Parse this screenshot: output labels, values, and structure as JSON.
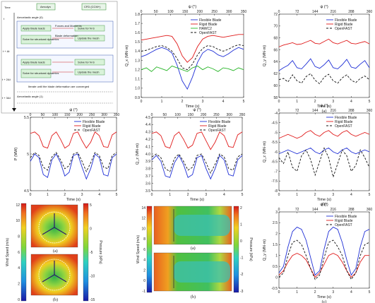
{
  "flowchart": {
    "col_time": "Time",
    "col_aerodyn": "Aerodyn",
    "col_cfd": "CFD (CCM+)",
    "step_aero": "Aeroelastic angle (0)",
    "block_fe": "FEA",
    "apply_loads": "Apply blade loads",
    "solve_struct": "Solve for structural dynamics",
    "block_cfd": "CFD",
    "solve_navier": "Solve for N-S",
    "update_mesh": "Update the mesh",
    "send_loads": "Forces and Moments",
    "send_def": "Blade deformation",
    "iterate": "Iterate until the blade deformation are converged",
    "step_next": "Aeroelastic angle (1)",
    "t0": "t",
    "t1": "t + Δt",
    "t2": "t + 2Δt",
    "t3": "t + 3Δt"
  },
  "contours": {
    "left_cbar_label": "Wind Speed (m/s)",
    "right_cbar_label": "Pressure (kPa)",
    "left_top_caption": "(a)",
    "left_bottom_caption": "(b)",
    "mid_top_caption": "(a)",
    "mid_bottom_caption": "(b)",
    "left_ws_ticks": [
      "12",
      "10",
      "8",
      "6",
      "4",
      "2",
      "0"
    ],
    "left_p_ticks": [
      "5",
      "0",
      "-5",
      "-10",
      "-15"
    ],
    "mid_ws_ticks": [
      "14",
      "12",
      "10",
      "8",
      "6",
      "4",
      "2",
      "0",
      "-1"
    ],
    "mid_p_ticks": [
      "2",
      "1",
      "0",
      "-1",
      "-2",
      "-3"
    ]
  },
  "chart_data": [
    {
      "type": "line",
      "top_axis_label": "ψ (°)",
      "xlabel": "Time (s)",
      "ylabel": "Q_x (MN·m)",
      "xlim": [
        0,
        5
      ],
      "ylim": [
        0.9,
        1.8
      ],
      "x_ticks": [
        "0",
        "1",
        "2",
        "3",
        "4",
        "5"
      ],
      "y_ticks": [
        "1.8",
        "1.7",
        "1.6",
        "1.5",
        "1.4",
        "1.3",
        "1.2",
        "1.1",
        "1.0",
        "0.9"
      ],
      "top_ticks": [
        "0",
        "50",
        "100",
        "150",
        "200",
        "250",
        "300",
        "350"
      ],
      "x": [
        0,
        0.25,
        0.5,
        0.75,
        1,
        1.25,
        1.5,
        1.75,
        2,
        2.25,
        2.5,
        2.75,
        3,
        3.25,
        3.5,
        3.75,
        4,
        4.25,
        4.5,
        4.75,
        5
      ],
      "series": [
        {
          "name": "Flexible Blade",
          "color": "#1f2fd6",
          "dash": "",
          "values": [
            1.34,
            1.36,
            1.39,
            1.42,
            1.44,
            1.42,
            1.38,
            1.25,
            1.08,
            0.99,
            1.12,
            1.28,
            1.38,
            1.42,
            1.4,
            1.36,
            1.34,
            1.37,
            1.41,
            1.44,
            1.42
          ]
        },
        {
          "name": "Rigid Blade",
          "color": "#e01a1a",
          "dash": "",
          "values": [
            1.52,
            1.53,
            1.54,
            1.55,
            1.56,
            1.57,
            1.56,
            1.48,
            1.35,
            1.28,
            1.33,
            1.45,
            1.53,
            1.56,
            1.57,
            1.56,
            1.55,
            1.56,
            1.57,
            1.58,
            1.58
          ]
        },
        {
          "name": "HAWC2",
          "color": "#27b527",
          "dash": "",
          "values": [
            1.2,
            1.22,
            1.18,
            1.23,
            1.21,
            1.19,
            1.24,
            1.22,
            1.2,
            1.18,
            1.22,
            1.24,
            1.2,
            1.23,
            1.21,
            1.18,
            1.22,
            1.21,
            1.19,
            1.22,
            1.2
          ]
        },
        {
          "name": "OpenFAST",
          "color": "#111111",
          "dash": "3,2",
          "values": [
            1.4,
            1.41,
            1.43,
            1.45,
            1.46,
            1.44,
            1.4,
            1.32,
            1.22,
            1.2,
            1.26,
            1.36,
            1.43,
            1.46,
            1.45,
            1.42,
            1.4,
            1.42,
            1.45,
            1.47,
            1.46
          ]
        }
      ]
    },
    {
      "type": "line",
      "top_axis_label": "ψ (°)",
      "xlabel": "Time (s)",
      "ylabel": "Q_y (MN·m)",
      "caption": "(a)",
      "xlim": [
        0,
        5
      ],
      "ylim": [
        58,
        72
      ],
      "x_ticks": [
        "0",
        "1",
        "2",
        "3",
        "4",
        "5"
      ],
      "y_ticks": [
        "72",
        "70",
        "68",
        "66",
        "64",
        "62",
        "60",
        "58"
      ],
      "top_ticks": [
        "0",
        "72",
        "144",
        "216",
        "288",
        "360"
      ],
      "x": [
        0,
        0.25,
        0.5,
        0.75,
        1,
        1.25,
        1.5,
        1.75,
        2,
        2.25,
        2.5,
        2.75,
        3,
        3.25,
        3.5,
        3.75,
        4,
        4.25,
        4.5,
        4.75,
        5
      ],
      "series": [
        {
          "name": "Flexible Blade",
          "color": "#1f2fd6",
          "dash": "",
          "values": [
            62.5,
            63.0,
            63.4,
            64.2,
            63.0,
            62.8,
            63.6,
            64.5,
            63.2,
            62.9,
            63.5,
            64.3,
            63.0,
            62.8,
            63.5,
            64.4,
            63.1,
            62.9,
            63.6,
            64.2,
            63.0
          ]
        },
        {
          "name": "Rigid Blade",
          "color": "#e01a1a",
          "dash": "",
          "values": [
            66.5,
            66.8,
            67.0,
            67.2,
            66.9,
            67.0,
            67.3,
            67.6,
            67.1,
            67.0,
            67.4,
            67.8,
            67.2,
            67.0,
            67.3,
            67.6,
            67.1,
            67.0,
            67.2,
            67.4,
            67.0
          ]
        },
        {
          "name": "OpenFAST",
          "color": "#111111",
          "dash": "3,2",
          "values": [
            61.0,
            61.2,
            60.6,
            61.8,
            60.8,
            60.4,
            61.5,
            62.0,
            60.9,
            60.3,
            61.4,
            61.9,
            60.8,
            60.4,
            61.3,
            61.8,
            60.9,
            60.5,
            61.2,
            61.6,
            61.0
          ]
        }
      ]
    },
    {
      "type": "line",
      "top_axis_label": "ψ (°)",
      "xlabel": "Time (s)",
      "ylabel": "P (MW)",
      "xlim": [
        0,
        5
      ],
      "ylim": [
        4.5,
        5.5
      ],
      "x_ticks": [
        "0",
        "1",
        "2",
        "3",
        "4",
        "5"
      ],
      "y_ticks": [
        "5.5",
        "5",
        "4.5"
      ],
      "top_ticks": [
        "0",
        "50",
        "100",
        "150",
        "200",
        "250",
        "300",
        "350"
      ],
      "x": [
        0,
        0.25,
        0.5,
        0.75,
        1,
        1.25,
        1.5,
        1.75,
        2,
        2.25,
        2.5,
        2.75,
        3,
        3.25,
        3.5,
        3.75,
        4,
        4.25,
        4.5,
        4.75,
        5
      ],
      "series": [
        {
          "name": "Flexible Blade",
          "color": "#1f2fd6",
          "dash": "",
          "values": [
            4.9,
            5.0,
            4.95,
            4.72,
            4.68,
            4.92,
            5.0,
            4.88,
            4.7,
            4.75,
            4.98,
            5.0,
            4.82,
            4.66,
            4.8,
            5.0,
            4.95,
            4.72,
            4.7,
            4.95,
            5.0
          ]
        },
        {
          "name": "Rigid Blade",
          "color": "#e01a1a",
          "dash": "",
          "values": [
            5.28,
            5.3,
            5.25,
            5.1,
            5.08,
            5.25,
            5.3,
            5.2,
            5.08,
            5.12,
            5.28,
            5.3,
            5.18,
            5.08,
            5.16,
            5.3,
            5.25,
            5.1,
            5.09,
            5.26,
            5.3
          ]
        },
        {
          "name": "OpenFAST",
          "color": "#111111",
          "dash": "3,2",
          "values": [
            4.95,
            5.02,
            4.98,
            4.82,
            4.78,
            4.96,
            5.02,
            4.92,
            4.8,
            4.84,
            5.0,
            5.02,
            4.9,
            4.76,
            4.88,
            5.02,
            4.98,
            4.82,
            4.8,
            4.98,
            5.02
          ]
        }
      ]
    },
    {
      "type": "line",
      "top_axis_label": "ψ (°)",
      "xlabel": "Time (s)",
      "ylabel": "Q_z (MN·m)",
      "xlim": [
        0,
        5
      ],
      "ylim": [
        3.5,
        4.5
      ],
      "x_ticks": [
        "0",
        "1",
        "2",
        "3",
        "4",
        "5"
      ],
      "y_ticks": [
        "4.5",
        "4.4",
        "4.3",
        "4.2",
        "4.1",
        "4.0",
        "3.9",
        "3.8",
        "3.7",
        "3.6",
        "3.5"
      ],
      "top_ticks": [
        "0",
        "50",
        "100",
        "150",
        "200",
        "250",
        "300",
        "350"
      ],
      "x": [
        0,
        0.25,
        0.5,
        0.75,
        1,
        1.25,
        1.5,
        1.75,
        2,
        2.25,
        2.5,
        2.75,
        3,
        3.25,
        3.5,
        3.75,
        4,
        4.25,
        4.5,
        4.75,
        5
      ],
      "series": [
        {
          "name": "Flexible Blade",
          "color": "#1f2fd6",
          "dash": "",
          "values": [
            3.92,
            3.98,
            3.9,
            3.7,
            3.68,
            3.88,
            3.98,
            3.86,
            3.68,
            3.72,
            3.95,
            3.98,
            3.8,
            3.66,
            3.8,
            3.98,
            3.92,
            3.72,
            3.7,
            3.92,
            3.98
          ]
        },
        {
          "name": "Rigid Blade",
          "color": "#e01a1a",
          "dash": "",
          "values": [
            4.28,
            4.3,
            4.25,
            4.1,
            4.08,
            4.25,
            4.3,
            4.2,
            4.08,
            4.12,
            4.28,
            4.3,
            4.18,
            4.06,
            4.16,
            4.3,
            4.25,
            4.1,
            4.09,
            4.26,
            4.3
          ]
        },
        {
          "name": "OpenFAST",
          "color": "#111111",
          "dash": "3,2",
          "values": [
            3.96,
            4.0,
            3.95,
            3.8,
            3.76,
            3.94,
            4.0,
            3.9,
            3.78,
            3.82,
            3.98,
            4.0,
            3.88,
            3.74,
            3.86,
            4.0,
            3.96,
            3.8,
            3.78,
            3.96,
            4.0
          ]
        }
      ]
    },
    {
      "type": "line",
      "top_axis_label": "ψ (°)",
      "xlabel": "Time (s)",
      "ylabel": "Q_z (MN·m)",
      "caption": "(b)",
      "xlim": [
        0,
        5
      ],
      "ylim": [
        -8,
        -4
      ],
      "x_ticks": [
        "0",
        "1",
        "2",
        "3",
        "4",
        "5"
      ],
      "y_ticks": [
        "-4",
        "-4.5",
        "-5",
        "-5.5",
        "-6",
        "-6.5",
        "-7",
        "-7.5",
        "-8"
      ],
      "top_ticks": [
        "0",
        "72",
        "144",
        "216",
        "288",
        "360"
      ],
      "x": [
        0,
        0.25,
        0.5,
        0.75,
        1,
        1.25,
        1.5,
        1.75,
        2,
        2.25,
        2.5,
        2.75,
        3,
        3.25,
        3.5,
        3.75,
        4,
        4.25,
        4.5,
        4.75,
        5
      ],
      "series": [
        {
          "name": "Flexible Blade",
          "color": "#1f2fd6",
          "dash": "",
          "values": [
            -6.1,
            -6.0,
            -5.9,
            -6.0,
            -6.1,
            -6.0,
            -5.9,
            -5.8,
            -6.0,
            -6.1,
            -5.9,
            -5.8,
            -6.0,
            -6.1,
            -5.9,
            -5.8,
            -6.0,
            -6.1,
            -6.0,
            -5.9,
            -6.0
          ]
        },
        {
          "name": "Rigid Blade",
          "color": "#e01a1a",
          "dash": "",
          "values": [
            -5.3,
            -5.2,
            -5.1,
            -5.2,
            -5.3,
            -5.2,
            -5.0,
            -4.9,
            -5.1,
            -5.2,
            -5.0,
            -4.9,
            -5.1,
            -5.2,
            -5.0,
            -4.9,
            -5.1,
            -5.2,
            -5.1,
            -5.0,
            -5.1
          ]
        },
        {
          "name": "OpenFAST",
          "color": "#111111",
          "dash": "3,2",
          "values": [
            -6.3,
            -6.6,
            -6.0,
            -6.8,
            -7.0,
            -6.2,
            -5.9,
            -6.4,
            -7.2,
            -6.5,
            -5.8,
            -6.3,
            -7.3,
            -6.6,
            -5.9,
            -6.2,
            -7.0,
            -6.7,
            -5.9,
            -6.3,
            -6.8
          ]
        }
      ]
    },
    {
      "type": "line",
      "top_axis_label": "ψ (°)",
      "xlabel": "Time (s)",
      "ylabel": "Q_y (MN·m)",
      "caption": "(c)",
      "xlim": [
        0,
        5
      ],
      "ylim": [
        -0.5,
        3
      ],
      "x_ticks": [
        "0",
        "1",
        "2",
        "3",
        "4",
        "5"
      ],
      "y_ticks": [
        "3",
        "2.5",
        "2",
        "1.5",
        "1",
        "0.5",
        "0",
        "-0.5"
      ],
      "top_ticks": [
        "0",
        "72",
        "144",
        "216",
        "288",
        "360"
      ],
      "x": [
        0,
        0.25,
        0.5,
        0.75,
        1,
        1.25,
        1.5,
        1.75,
        2,
        2.25,
        2.5,
        2.75,
        3,
        3.25,
        3.5,
        3.75,
        4,
        4.25,
        4.5,
        4.75,
        5
      ],
      "series": [
        {
          "name": "Flexible Blade",
          "color": "#1f2fd6",
          "dash": "",
          "values": [
            0.2,
            0.5,
            1.4,
            2.1,
            2.3,
            2.2,
            1.7,
            0.9,
            0.1,
            0.3,
            1.3,
            2.1,
            2.3,
            2.2,
            1.6,
            0.8,
            0.1,
            0.4,
            1.4,
            2.1,
            2.2
          ]
        },
        {
          "name": "Rigid Blade",
          "color": "#e01a1a",
          "dash": "",
          "values": [
            0.1,
            0.3,
            0.7,
            1.0,
            1.1,
            1.0,
            0.8,
            0.4,
            0.0,
            0.2,
            0.6,
            1.0,
            1.1,
            1.0,
            0.7,
            0.3,
            0.0,
            0.2,
            0.7,
            1.0,
            1.0
          ]
        },
        {
          "name": "OpenFAST",
          "color": "#111111",
          "dash": "3,2",
          "values": [
            0.0,
            0.2,
            1.0,
            1.6,
            1.7,
            1.5,
            1.0,
            0.4,
            -0.1,
            0.1,
            0.9,
            1.6,
            1.7,
            1.4,
            1.0,
            0.3,
            -0.1,
            0.2,
            1.0,
            1.5,
            1.6
          ]
        }
      ]
    }
  ]
}
